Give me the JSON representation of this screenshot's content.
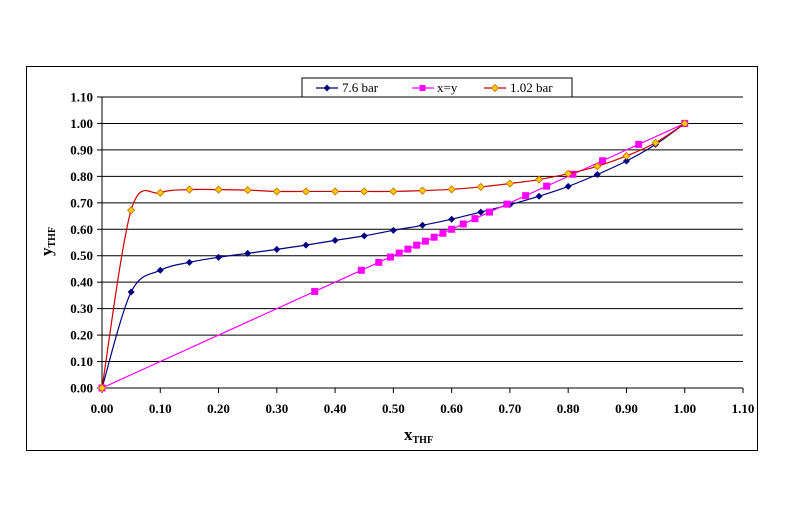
{
  "chart_data": {
    "type": "line",
    "title": "",
    "xlabel": "x_THF",
    "xlabel_main": "x",
    "xlabel_sub": "THF",
    "ylabel": "y_THF",
    "ylabel_main": "y",
    "ylabel_sub": "THF",
    "xlim": [
      0.0,
      1.1
    ],
    "ylim": [
      0.0,
      1.1
    ],
    "x_ticks": [
      "0.00",
      "0.10",
      "0.20",
      "0.30",
      "0.40",
      "0.50",
      "0.60",
      "0.70",
      "0.80",
      "0.90",
      "1.00",
      "1.10"
    ],
    "y_ticks": [
      "0.00",
      "0.10",
      "0.20",
      "0.30",
      "0.40",
      "0.50",
      "0.60",
      "0.70",
      "0.80",
      "0.90",
      "1.00",
      "1.10"
    ],
    "grid": "horizontal major gridlines",
    "legend_position": "top",
    "series": [
      {
        "name": "7.6 bar",
        "color": "#000080",
        "marker": "diamond-filled",
        "x": [
          0.0,
          0.05,
          0.1,
          0.15,
          0.2,
          0.25,
          0.3,
          0.35,
          0.4,
          0.45,
          0.5,
          0.55,
          0.6,
          0.65,
          0.7,
          0.75,
          0.8,
          0.85,
          0.9,
          0.95,
          1.0
        ],
        "y": [
          0.0,
          0.363,
          0.445,
          0.475,
          0.494,
          0.509,
          0.524,
          0.54,
          0.558,
          0.575,
          0.596,
          0.615,
          0.638,
          0.665,
          0.693,
          0.725,
          0.762,
          0.807,
          0.858,
          0.921,
          1.0
        ]
      },
      {
        "name": "x=y",
        "color": "#FF00FF",
        "marker": "square-filled",
        "x": [
          0.0,
          0.365,
          0.445,
          0.475,
          0.495,
          0.51,
          0.525,
          0.54,
          0.555,
          0.57,
          0.585,
          0.6,
          0.62,
          0.64,
          0.665,
          0.695,
          0.727,
          0.763,
          0.808,
          0.859,
          0.921,
          1.0
        ],
        "y": [
          0.0,
          0.365,
          0.445,
          0.475,
          0.495,
          0.51,
          0.525,
          0.54,
          0.555,
          0.57,
          0.585,
          0.6,
          0.62,
          0.64,
          0.665,
          0.695,
          0.727,
          0.763,
          0.808,
          0.859,
          0.921,
          1.0
        ]
      },
      {
        "name": "1.02 bar",
        "color": "#CC0000",
        "marker_fill": "#FFCC00",
        "marker": "diamond-hollow",
        "x": [
          0.0,
          0.05,
          0.1,
          0.15,
          0.2,
          0.25,
          0.3,
          0.35,
          0.4,
          0.45,
          0.5,
          0.55,
          0.6,
          0.65,
          0.7,
          0.75,
          0.8,
          0.85,
          0.9,
          0.95,
          1.0
        ],
        "y": [
          0.0,
          0.672,
          0.738,
          0.75,
          0.75,
          0.748,
          0.743,
          0.743,
          0.743,
          0.743,
          0.743,
          0.746,
          0.751,
          0.76,
          0.773,
          0.788,
          0.81,
          0.838,
          0.877,
          0.927,
          1.0
        ]
      }
    ]
  },
  "legend": {
    "items": [
      {
        "label": "7.6 bar"
      },
      {
        "label": "x=y"
      },
      {
        "label": "1.02 bar"
      }
    ]
  }
}
